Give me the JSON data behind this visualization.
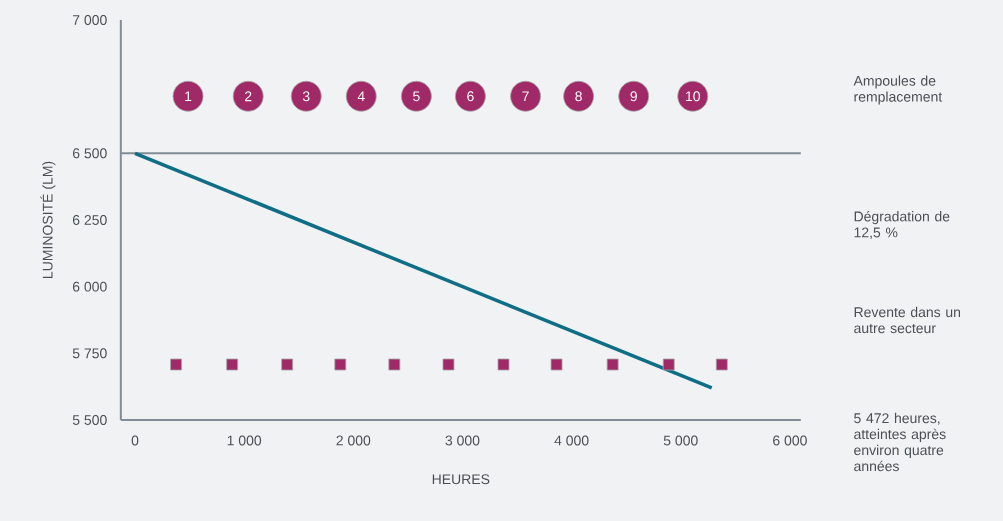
{
  "chart_data": {
    "type": "scatter",
    "xlabel": "HEURES",
    "ylabel": "LUMINOSITÉ (LM)",
    "xlim": [
      -130,
      6100
    ],
    "ylim": [
      5500,
      7000
    ],
    "xticks": [
      0,
      {
        "value": 1000,
        "label": "1 000"
      },
      {
        "value": 2000,
        "label": "2 000"
      },
      {
        "value": 3000,
        "label": "3 000"
      },
      {
        "value": 4000,
        "label": "4 000"
      },
      {
        "value": 5000,
        "label": "5 000"
      },
      {
        "value": 6000,
        "label": "6 000"
      }
    ],
    "yticks": [
      {
        "value": 5500,
        "label": "5 500"
      },
      {
        "value": 5750,
        "label": "5 750"
      },
      {
        "value": 6000,
        "label": "6 000"
      },
      {
        "value": 6250,
        "label": "6 250"
      },
      {
        "value": 6500,
        "label": "6 500"
      },
      {
        "value": 7000,
        "label": "7 000"
      }
    ],
    "series": [
      {
        "type": "line",
        "color": "#0f6e86",
        "x": [
          0,
          5284
        ],
        "values": [
          6500,
          5620
        ],
        "marker": "none"
      },
      {
        "color": "#a02a67",
        "marker": "square",
        "x": [
          376,
          890,
          1394,
          1881,
          2376,
          2872,
          3376,
          3862,
          4376,
          4890,
          5376
        ],
        "values": [
          5708,
          5708,
          5708,
          5708,
          5708,
          5708,
          5708,
          5708,
          5708,
          5708,
          5708
        ]
      },
      {
        "color": "#a02a67",
        "marker": "circle",
        "x": [
          486,
          1037,
          1569,
          2073,
          2578,
          3073,
          3578,
          4064,
          4569,
          5110
        ],
        "values": [
          6714,
          6714,
          6714,
          6714,
          6714,
          6714,
          6714,
          6714,
          6714,
          6714
        ]
      }
    ],
    "ref_lines": [
      {
        "axis": "y",
        "value": 6500,
        "color": "#828c96"
      }
    ],
    "annotations": [
      "Ampoules de remplacement",
      "Dégradation de 12,5 %",
      "Revente dans un autre secteur",
      "5 472 heures, atteintes après environ quatre années",
      {
        "text": "1",
        "x": 486,
        "y": 6714
      },
      {
        "text": "2",
        "x": 1037,
        "y": 6714
      },
      {
        "text": "3",
        "x": 1569,
        "y": 6714
      },
      {
        "text": "4",
        "x": 2073,
        "y": 6714
      },
      {
        "text": "5",
        "x": 2578,
        "y": 6714
      },
      {
        "text": "6",
        "x": 3073,
        "y": 6714
      },
      {
        "text": "7",
        "x": 3578,
        "y": 6714
      },
      {
        "text": "8",
        "x": 4064,
        "y": 6714
      },
      {
        "text": "9",
        "x": 4569,
        "y": 6714
      },
      {
        "text": "10",
        "x": 5110,
        "y": 6714
      }
    ],
    "grid": false
  }
}
